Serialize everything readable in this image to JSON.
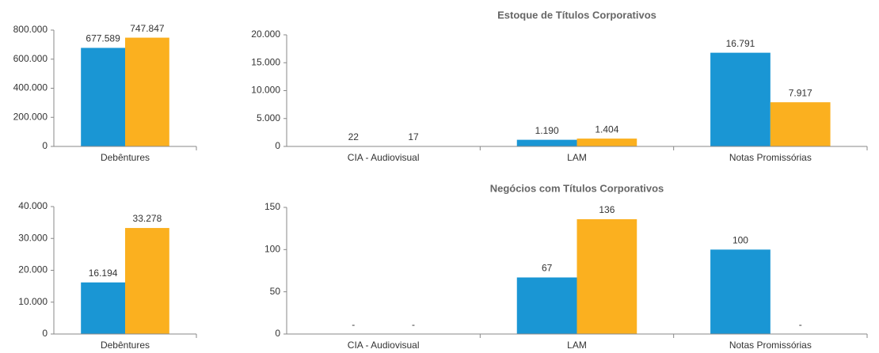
{
  "chart_data": [
    {
      "type": "bar",
      "categories": [
        "Debêntures"
      ],
      "series": [
        {
          "color": "#1a96d4",
          "values": [
            677589
          ],
          "value_labels": [
            "677.589"
          ]
        },
        {
          "color": "#fbb01f",
          "values": [
            747847
          ],
          "value_labels": [
            "747.847"
          ]
        }
      ],
      "ylim": [
        0,
        800000
      ],
      "yticks": [
        0,
        {
          "value": 200000,
          "label": "200.000"
        },
        {
          "value": 400000,
          "label": "400.000"
        },
        {
          "value": 600000,
          "label": "600.000"
        },
        {
          "value": 800000,
          "label": "800.000"
        }
      ]
    },
    {
      "type": "bar",
      "title": "Estoque  de Títulos Corporativos",
      "categories": [
        "CIA - Audiovisual",
        "LAM",
        "Notas Promissórias"
      ],
      "series": [
        {
          "color": "#1a96d4",
          "values": [
            22,
            1190,
            16791
          ],
          "value_labels": [
            "22",
            "1.190",
            "16.791"
          ]
        },
        {
          "color": "#fbb01f",
          "values": [
            17,
            1404,
            7917
          ],
          "value_labels": [
            "17",
            "1.404",
            "7.917"
          ]
        }
      ],
      "ylim": [
        0,
        20000
      ],
      "yticks": [
        0,
        {
          "value": 5000,
          "label": "5.000"
        },
        {
          "value": 10000,
          "label": "10.000"
        },
        {
          "value": 15000,
          "label": "15.000"
        },
        {
          "value": 20000,
          "label": "20.000"
        }
      ]
    },
    {
      "type": "bar",
      "categories": [
        "Debêntures"
      ],
      "series": [
        {
          "color": "#1a96d4",
          "values": [
            16194
          ],
          "value_labels": [
            "16.194"
          ]
        },
        {
          "color": "#fbb01f",
          "values": [
            33278
          ],
          "value_labels": [
            "33.278"
          ]
        }
      ],
      "ylim": [
        0,
        40000
      ],
      "yticks": [
        0,
        {
          "value": 10000,
          "label": "10.000"
        },
        {
          "value": 20000,
          "label": "20.000"
        },
        {
          "value": 30000,
          "label": "30.000"
        },
        {
          "value": 40000,
          "label": "40.000"
        }
      ]
    },
    {
      "type": "bar",
      "title": "Negócios com Títulos Corporativos",
      "categories": [
        "CIA - Audiovisual",
        "LAM",
        "Notas Promissórias"
      ],
      "series": [
        {
          "color": "#1a96d4",
          "values": [
            0,
            67,
            100
          ],
          "value_labels": [
            "-",
            "67",
            "100"
          ]
        },
        {
          "color": "#fbb01f",
          "values": [
            0,
            136,
            0
          ],
          "value_labels": [
            "-",
            "136",
            "-"
          ]
        }
      ],
      "ylim": [
        0,
        150
      ],
      "yticks": [
        0,
        50,
        100,
        150
      ]
    }
  ]
}
